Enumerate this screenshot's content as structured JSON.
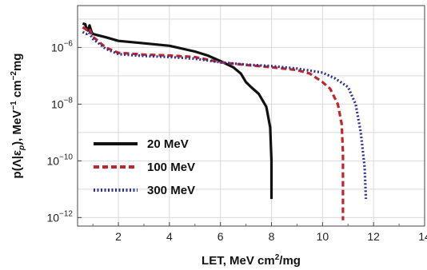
{
  "chart_data": {
    "type": "line",
    "xlabel_parts": [
      "LET, MeV cm",
      "2",
      "/mg"
    ],
    "ylabel_parts": [
      "p(Λ|ε",
      "p",
      "), MeV",
      "−1",
      " cm",
      "−2",
      "mg"
    ],
    "xlim": [
      0.4,
      14
    ],
    "x_ticks": [
      2,
      4,
      6,
      8,
      10,
      12,
      14
    ],
    "y_log": true,
    "y_ticks": [
      {
        "value": 1e-12,
        "base": "10",
        "exp": "−12"
      },
      {
        "value": 1e-10,
        "base": "10",
        "exp": "−10"
      },
      {
        "value": 1e-08,
        "base": "10",
        "exp": "−8"
      },
      {
        "value": 1e-06,
        "base": "10",
        "exp": "−6"
      }
    ],
    "ylim": [
      5e-13,
      3e-05
    ],
    "grid": true,
    "legend_position": "bottom-left",
    "series": [
      {
        "name": "20 MeV",
        "color": "#111111",
        "style": "solid",
        "points": [
          [
            0.6,
            7e-06
          ],
          [
            0.7,
            6.6e-06
          ],
          [
            0.75,
            4.5e-06
          ],
          [
            0.8,
            4e-06
          ],
          [
            0.87,
            6e-06
          ],
          [
            0.95,
            3.5e-06
          ],
          [
            1.0,
            3e-06
          ],
          [
            1.5,
            2.3e-06
          ],
          [
            2.0,
            1.7e-06
          ],
          [
            3.0,
            1.4e-06
          ],
          [
            4.0,
            1.15e-06
          ],
          [
            5.0,
            7.2e-07
          ],
          [
            5.5,
            5.2e-07
          ],
          [
            6.0,
            3.3e-07
          ],
          [
            6.5,
            2e-07
          ],
          [
            6.8,
            1.2e-07
          ],
          [
            7.0,
            6e-08
          ],
          [
            7.2,
            4e-08
          ],
          [
            7.5,
            2.3e-08
          ],
          [
            7.8,
            8e-09
          ],
          [
            7.95,
            1.5e-09
          ],
          [
            8.0,
            1e-10
          ],
          [
            8.0,
            4.5e-12
          ]
        ]
      },
      {
        "name": "100 MeV",
        "color": "#c0272d",
        "style": "dashed",
        "points": [
          [
            0.6,
            5.2e-06
          ],
          [
            0.75,
            4.2e-06
          ],
          [
            0.85,
            4.8e-06
          ],
          [
            1.0,
            2.4e-06
          ],
          [
            1.5,
            1e-06
          ],
          [
            2.0,
            6.5e-07
          ],
          [
            3.0,
            5.6e-07
          ],
          [
            4.0,
            5.2e-07
          ],
          [
            5.0,
            4.6e-07
          ],
          [
            6.0,
            3e-07
          ],
          [
            7.0,
            2.4e-07
          ],
          [
            8.0,
            2e-07
          ],
          [
            9.0,
            1.6e-07
          ],
          [
            9.5,
            1.2e-07
          ],
          [
            10.0,
            6e-08
          ],
          [
            10.3,
            3.5e-08
          ],
          [
            10.6,
            1e-08
          ],
          [
            10.75,
            2e-09
          ],
          [
            10.8,
            2e-10
          ],
          [
            10.8,
            8e-13
          ]
        ]
      },
      {
        "name": "300 MeV",
        "color": "#2e3192",
        "style": "dotted",
        "points": [
          [
            0.6,
            3.5e-06
          ],
          [
            0.75,
            3e-06
          ],
          [
            0.85,
            3.4e-06
          ],
          [
            1.0,
            2e-06
          ],
          [
            1.5,
            9e-07
          ],
          [
            2.0,
            5.8e-07
          ],
          [
            3.0,
            5e-07
          ],
          [
            4.0,
            4.6e-07
          ],
          [
            5.0,
            4e-07
          ],
          [
            6.0,
            3e-07
          ],
          [
            7.0,
            2.5e-07
          ],
          [
            8.0,
            2.2e-07
          ],
          [
            9.0,
            1.8e-07
          ],
          [
            10.0,
            1.3e-07
          ],
          [
            10.5,
            8e-08
          ],
          [
            11.0,
            4e-08
          ],
          [
            11.3,
            1e-08
          ],
          [
            11.5,
            1e-09
          ],
          [
            11.65,
            6e-11
          ],
          [
            11.7,
            4.5e-12
          ]
        ]
      }
    ]
  }
}
